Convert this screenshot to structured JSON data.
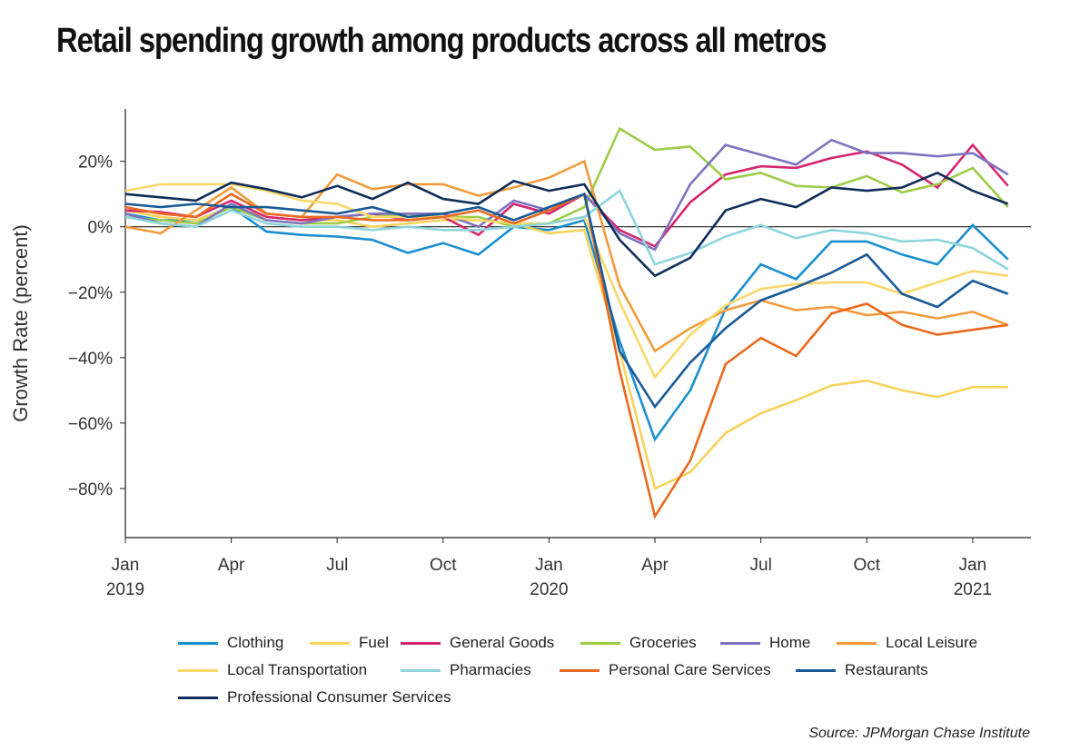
{
  "header": {
    "title": "Retail spending growth among products across all metros",
    "source": "Source: JPMorgan Chase Institute"
  },
  "chart_data": {
    "type": "line",
    "title": "Retail spending growth among products across all metros",
    "xlabel": "",
    "ylabel": "Growth Rate (percent)",
    "ylim": [
      -95,
      36
    ],
    "yticks": [
      20,
      0,
      -20,
      -40,
      -60,
      -80
    ],
    "ytick_labels": [
      "20%",
      "0%",
      "−20%",
      "−40%",
      "−60%",
      "−80%"
    ],
    "x": [
      "2019-01",
      "2019-02",
      "2019-03",
      "2019-04",
      "2019-05",
      "2019-06",
      "2019-07",
      "2019-08",
      "2019-09",
      "2019-10",
      "2019-11",
      "2019-12",
      "2020-01",
      "2020-02",
      "2020-03",
      "2020-04",
      "2020-05",
      "2020-06",
      "2020-07",
      "2020-08",
      "2020-09",
      "2020-10",
      "2020-11",
      "2020-12",
      "2021-01",
      "2021-02"
    ],
    "xticks": [
      {
        "x": "2019-01",
        "label": "Jan",
        "year": "2019"
      },
      {
        "x": "2019-04",
        "label": "Apr",
        "year": ""
      },
      {
        "x": "2019-07",
        "label": "Jul",
        "year": ""
      },
      {
        "x": "2019-10",
        "label": "Oct",
        "year": ""
      },
      {
        "x": "2020-01",
        "label": "Jan",
        "year": "2020"
      },
      {
        "x": "2020-04",
        "label": "Apr",
        "year": ""
      },
      {
        "x": "2020-07",
        "label": "Jul",
        "year": ""
      },
      {
        "x": "2020-10",
        "label": "Oct",
        "year": ""
      },
      {
        "x": "2021-01",
        "label": "Jan",
        "year": "2021"
      }
    ],
    "zero_line": true,
    "grid": false,
    "legend_position": "bottom",
    "series": [
      {
        "name": "Clothing",
        "color": "#1a8fd0",
        "values": [
          4,
          2,
          2,
          6,
          -1.5,
          -2.5,
          -3,
          -4,
          -8,
          -5,
          -8.5,
          0,
          -1,
          2,
          -35,
          -65,
          -50,
          -25,
          -11.5,
          -16,
          -4.5,
          -4.5,
          -8.5,
          -11.5,
          0.5,
          -10
        ]
      },
      {
        "name": "Fuel",
        "color": "#f7d35c",
        "values": [
          5,
          3,
          2,
          6,
          3,
          2,
          2,
          0,
          1,
          2,
          2,
          1,
          -2,
          -1,
          -38,
          -80,
          -75,
          -63,
          -57,
          -53,
          -48.5,
          -47,
          -50,
          -52,
          -49,
          -49
        ]
      },
      {
        "name": "General Goods",
        "color": "#d4266e",
        "values": [
          5,
          4.5,
          3,
          8,
          3,
          2,
          3,
          4,
          2,
          3,
          -2.5,
          7,
          4,
          10,
          -1,
          -6,
          7.5,
          16,
          18.5,
          18,
          21,
          23,
          19,
          12,
          25,
          12.5
        ]
      },
      {
        "name": "Groceries",
        "color": "#9ccc48",
        "values": [
          3,
          2,
          1,
          6,
          2,
          1,
          1,
          3,
          4,
          3,
          3,
          0,
          1,
          6,
          30,
          23.5,
          24.5,
          14.5,
          16.5,
          12.5,
          12,
          15.5,
          10.5,
          13,
          18,
          6
        ]
      },
      {
        "name": "Home",
        "color": "#7d73c0",
        "values": [
          4,
          1,
          0,
          7,
          2,
          1,
          3,
          4,
          4,
          4,
          0,
          8,
          5,
          10,
          -2,
          -7,
          13,
          25,
          22,
          19,
          26.5,
          22.5,
          22.5,
          21.5,
          22.5,
          16
        ]
      },
      {
        "name": "Local Leisure",
        "color": "#f39b3c",
        "values": [
          0,
          -2,
          5,
          12,
          4,
          3,
          16,
          11.5,
          13,
          13,
          9.5,
          12,
          15,
          20,
          -18,
          -38,
          -31,
          -25.5,
          -22.5,
          -25.5,
          -24.5,
          -27,
          -26,
          -28,
          -26,
          -30
        ]
      },
      {
        "name": "Local Transportation",
        "color": "#f9d86a",
        "values": [
          11,
          13,
          13,
          13,
          11,
          8,
          7,
          3,
          3,
          3,
          2,
          1,
          1,
          3,
          -23,
          -46,
          -33,
          -24,
          -19,
          -17.5,
          -17,
          -17,
          -20.5,
          -17,
          -13.5,
          -15
        ]
      },
      {
        "name": "Pharmacies",
        "color": "#8ed4dc",
        "values": [
          3,
          1,
          0,
          5,
          1,
          0,
          0,
          -1,
          0,
          -1,
          -1,
          0,
          1,
          3,
          11,
          -11.5,
          -8,
          -3,
          0.5,
          -3.5,
          -1,
          -2,
          -4.5,
          -4,
          -6.5,
          -13
        ]
      },
      {
        "name": "Personal Care Services",
        "color": "#ea6a1f",
        "values": [
          6,
          4,
          3,
          10,
          4,
          3,
          3,
          2,
          2,
          3,
          5,
          1,
          5,
          10,
          -44,
          -88.5,
          -71.5,
          -42,
          -34,
          -39.5,
          -26.5,
          -23.5,
          -30,
          -33,
          -31.5,
          -30
        ]
      },
      {
        "name": "Restaurants",
        "color": "#1a5a96",
        "values": [
          7,
          6,
          7,
          6,
          6,
          5,
          4,
          6,
          3,
          4,
          6,
          2,
          6,
          10,
          -38,
          -55,
          -41.5,
          -31,
          -22.5,
          -18.5,
          -14,
          -8.5,
          -20.5,
          -24.5,
          -16.5,
          -20.5
        ]
      },
      {
        "name": "Professional Consumer Services",
        "color": "#0f2d59",
        "values": [
          10,
          9,
          8,
          13.5,
          11.5,
          9,
          12.5,
          8.5,
          13.5,
          8.5,
          7,
          14,
          11,
          13,
          -4,
          -15,
          -9.5,
          5,
          8.5,
          6,
          12,
          11,
          12,
          16.5,
          11,
          7
        ]
      }
    ]
  }
}
